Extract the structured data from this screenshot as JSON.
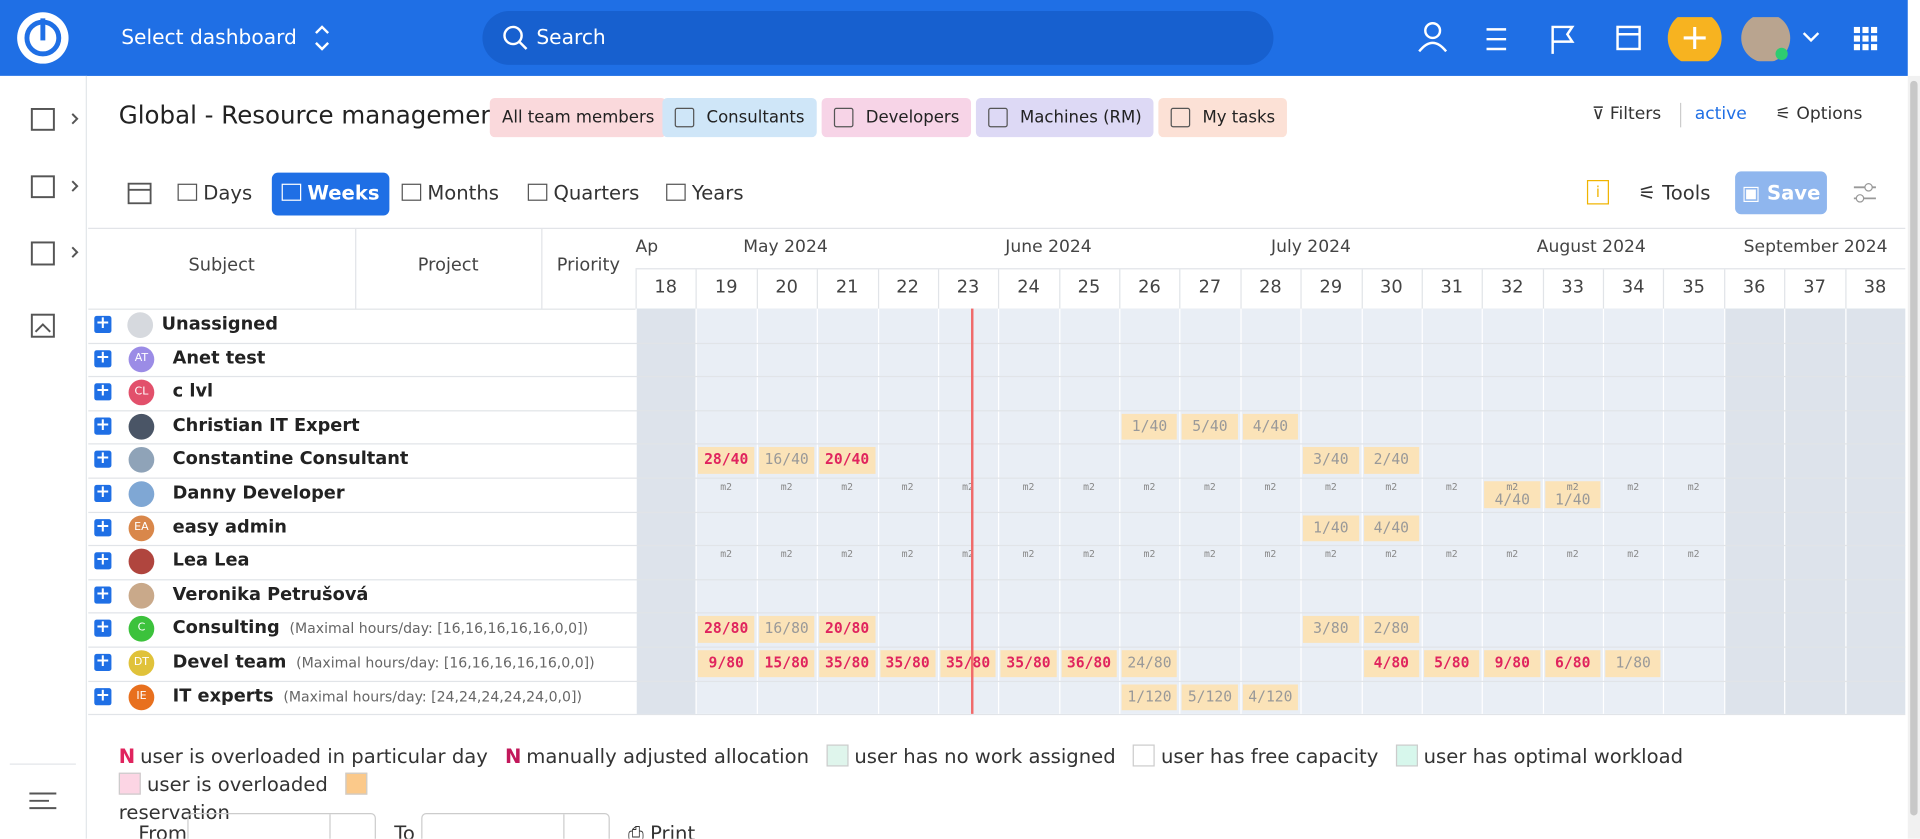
{
  "header": {
    "dashboard": "Select dashboard",
    "search": "Search"
  },
  "page": {
    "title": "Global - Resource management",
    "tags": [
      {
        "text": "All team members",
        "color": "#fad9dc"
      },
      {
        "text": "Consultants",
        "color": "#cfe6f8"
      },
      {
        "text": "Developers",
        "color": "#f7d4e7"
      },
      {
        "text": "Machines (RM)",
        "color": "#ddd9f5"
      },
      {
        "text": "My tasks",
        "color": "#fce1d6"
      }
    ],
    "filters": "Filters",
    "filters_state": "active",
    "options": "Options",
    "views": [
      "Days",
      "Weeks",
      "Months",
      "Quarters",
      "Years"
    ],
    "active_view": "Weeks",
    "tools": "Tools",
    "save": "Save"
  },
  "grid": {
    "columns": [
      "Subject",
      "Project",
      "Priority"
    ],
    "months": [
      "Ap",
      "May 2024",
      "June 2024",
      "July 2024",
      "August 2024",
      "September 2024"
    ],
    "weeks": [
      "18",
      "19",
      "20",
      "21",
      "22",
      "23",
      "24",
      "25",
      "26",
      "27",
      "28",
      "29",
      "30",
      "31",
      "32",
      "33",
      "34",
      "35",
      "36",
      "37",
      "38"
    ],
    "today_week": "23",
    "rows": [
      {
        "name": "Unassigned",
        "avatar_color": "#d6d9de",
        "cells": []
      },
      {
        "name": "Anet test",
        "initials": "AT",
        "avatar_color": "#9b8ce6",
        "cells": []
      },
      {
        "name": "c lvl",
        "initials": "CL",
        "avatar_color": "#e2506b",
        "cells": []
      },
      {
        "name": "Christian IT Expert",
        "avatar_color": "#4a5566",
        "cells": [
          {
            "week": "26",
            "text": "1/40",
            "kind": "res"
          },
          {
            "week": "27",
            "text": "5/40",
            "kind": "res"
          },
          {
            "week": "28",
            "text": "4/40",
            "kind": "res"
          }
        ]
      },
      {
        "name": "Constantine Consultant",
        "avatar_color": "#8fa3b8",
        "cells": [
          {
            "week": "19",
            "text": "28/40",
            "kind": "over"
          },
          {
            "week": "20",
            "text": "16/40",
            "kind": "res"
          },
          {
            "week": "21",
            "text": "20/40",
            "kind": "over"
          },
          {
            "week": "29",
            "text": "3/40",
            "kind": "res"
          },
          {
            "week": "30",
            "text": "2/40",
            "kind": "res"
          }
        ]
      },
      {
        "name": "Danny Developer",
        "avatar_color": "#7fa7d4",
        "cells": [
          {
            "week": "19",
            "mark": "m2"
          },
          {
            "week": "20",
            "mark": "m2"
          },
          {
            "week": "21",
            "mark": "m2"
          },
          {
            "week": "22",
            "mark": "m2"
          },
          {
            "week": "23",
            "mark": "m2"
          },
          {
            "week": "24",
            "mark": "m2"
          },
          {
            "week": "25",
            "mark": "m2"
          },
          {
            "week": "26",
            "mark": "m2"
          },
          {
            "week": "27",
            "mark": "m2"
          },
          {
            "week": "28",
            "mark": "m2"
          },
          {
            "week": "29",
            "mark": "m2"
          },
          {
            "week": "30",
            "mark": "m2"
          },
          {
            "week": "31",
            "mark": "m2"
          },
          {
            "week": "32",
            "mark": "m2",
            "text": "4/40",
            "kind": "res"
          },
          {
            "week": "33",
            "mark": "m2",
            "text": "1/40",
            "kind": "res"
          },
          {
            "week": "34",
            "mark": "m2"
          },
          {
            "week": "35",
            "mark": "m2"
          }
        ]
      },
      {
        "name": "easy admin",
        "initials": "EA",
        "avatar_color": "#d9874a",
        "cells": [
          {
            "week": "29",
            "text": "1/40",
            "kind": "res"
          },
          {
            "week": "30",
            "text": "4/40",
            "kind": "res"
          }
        ]
      },
      {
        "name": "Lea Lea",
        "avatar_color": "#b0453e",
        "cells": [
          {
            "week": "19",
            "mark": "m2"
          },
          {
            "week": "20",
            "mark": "m2"
          },
          {
            "week": "21",
            "mark": "m2"
          },
          {
            "week": "22",
            "mark": "m2"
          },
          {
            "week": "23",
            "mark": "m2"
          },
          {
            "week": "24",
            "mark": "m2"
          },
          {
            "week": "25",
            "mark": "m2"
          },
          {
            "week": "26",
            "mark": "m2"
          },
          {
            "week": "27",
            "mark": "m2"
          },
          {
            "week": "28",
            "mark": "m2"
          },
          {
            "week": "29",
            "mark": "m2"
          },
          {
            "week": "30",
            "mark": "m2"
          },
          {
            "week": "31",
            "mark": "m2"
          },
          {
            "week": "32",
            "mark": "m2"
          },
          {
            "week": "33",
            "mark": "m2"
          },
          {
            "week": "34",
            "mark": "m2"
          },
          {
            "week": "35",
            "mark": "m2"
          }
        ]
      },
      {
        "name": "Veronika Petrušová",
        "avatar_color": "#c9a98a",
        "cells": []
      },
      {
        "name": "Consulting",
        "initials": "C",
        "avatar_color": "#3cc23c",
        "note": "(Maximal hours/day: [16,16,16,16,16,0,0])",
        "cells": [
          {
            "week": "19",
            "text": "28/80",
            "kind": "over"
          },
          {
            "week": "20",
            "text": "16/80",
            "kind": "res"
          },
          {
            "week": "21",
            "text": "20/80",
            "kind": "over"
          },
          {
            "week": "29",
            "text": "3/80",
            "kind": "res"
          },
          {
            "week": "30",
            "text": "2/80",
            "kind": "res"
          }
        ]
      },
      {
        "name": "Devel team",
        "initials": "DT",
        "avatar_color": "#e0c23a",
        "note": "(Maximal hours/day: [16,16,16,16,16,0,0])",
        "cells": [
          {
            "week": "19",
            "text": "9/80",
            "kind": "over"
          },
          {
            "week": "20",
            "text": "15/80",
            "kind": "over"
          },
          {
            "week": "21",
            "text": "35/80",
            "kind": "over"
          },
          {
            "week": "22",
            "text": "35/80",
            "kind": "over"
          },
          {
            "week": "23",
            "text": "35/80",
            "kind": "over"
          },
          {
            "week": "24",
            "text": "35/80",
            "kind": "over"
          },
          {
            "week": "25",
            "text": "36/80",
            "kind": "over"
          },
          {
            "week": "26",
            "text": "24/80",
            "kind": "res"
          },
          {
            "week": "30",
            "text": "4/80",
            "kind": "over"
          },
          {
            "week": "31",
            "text": "5/80",
            "kind": "over"
          },
          {
            "week": "32",
            "text": "9/80",
            "kind": "over"
          },
          {
            "week": "33",
            "text": "6/80",
            "kind": "over"
          },
          {
            "week": "34",
            "text": "1/80",
            "kind": "res"
          }
        ]
      },
      {
        "name": "IT experts",
        "initials": "IE",
        "avatar_color": "#e8701e",
        "note": "(Maximal hours/day: [24,24,24,24,24,0,0])",
        "cells": [
          {
            "week": "26",
            "text": "1/120",
            "kind": "res"
          },
          {
            "week": "27",
            "text": "5/120",
            "kind": "res"
          },
          {
            "week": "28",
            "text": "4/120",
            "kind": "res"
          }
        ]
      }
    ]
  },
  "legend": [
    {
      "marker": "N",
      "marker_color": "#e0245e",
      "text": "user is overloaded in particular day"
    },
    {
      "marker": "N",
      "marker_color": "#c2185b",
      "text": "manually adjusted allocation"
    },
    {
      "swatch": "#dff5ec",
      "text": "user has no work assigned"
    },
    {
      "swatch": "#ffffff",
      "text": "user has free capacity"
    },
    {
      "swatch": "#d7f7ec",
      "text": "user has optimal workload"
    },
    {
      "swatch": "#fcd5e4",
      "text": "user is overloaded"
    },
    {
      "swatch": "#fbc98a",
      "text": "reservation"
    }
  ],
  "footer": {
    "from": "From",
    "to": "To",
    "print": "Print"
  }
}
